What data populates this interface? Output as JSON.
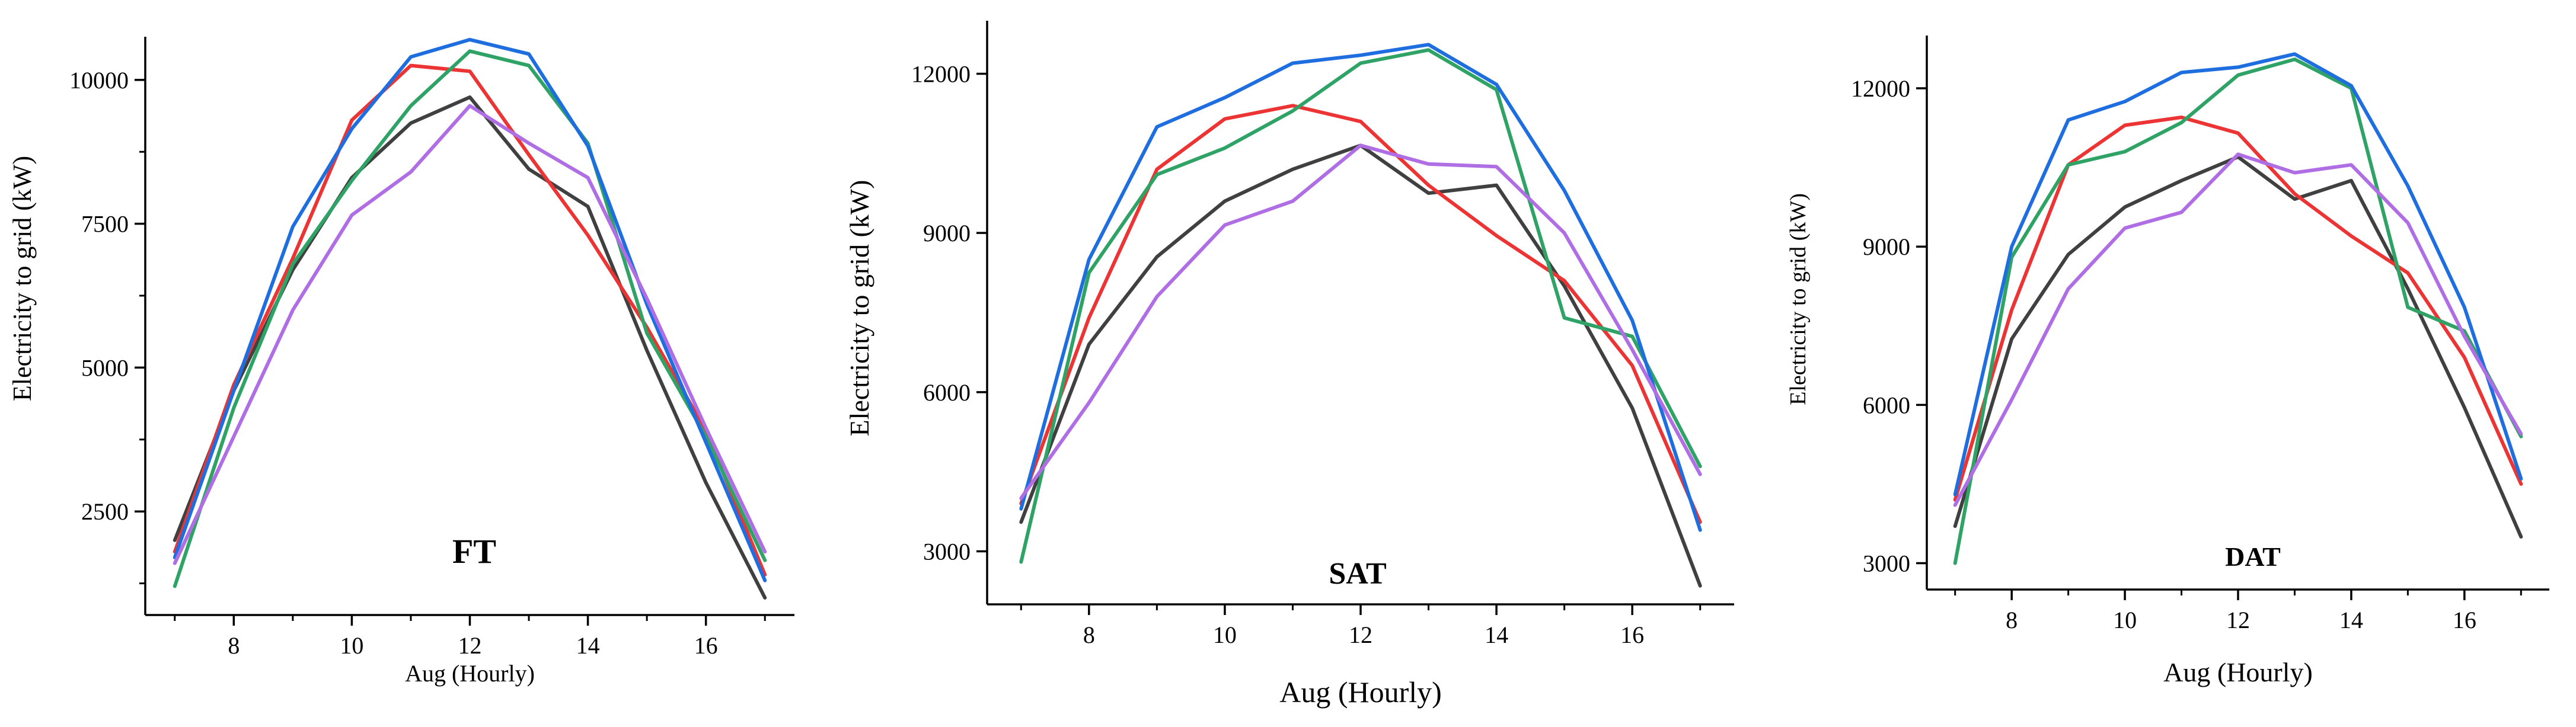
{
  "chart_data": [
    {
      "type": "line",
      "panel_label": "FT",
      "xlabel": "Aug (Hourly)",
      "ylabel": "Electricity to grid (kW)",
      "x": [
        7,
        8,
        9,
        10,
        11,
        12,
        13,
        14,
        15,
        16,
        17
      ],
      "xlim": [
        6.5,
        17.5
      ],
      "ylim": [
        700,
        10750
      ],
      "xticks": [
        8,
        10,
        12,
        14,
        16
      ],
      "yticks": [
        2500,
        5000,
        7500,
        10000
      ],
      "series": [
        {
          "name": "gray",
          "color": "#404040",
          "values": [
            2000,
            4600,
            6700,
            8300,
            9250,
            9700,
            8450,
            7800,
            5300,
            3000,
            1000
          ]
        },
        {
          "name": "red",
          "color": "#ec3434",
          "values": [
            1800,
            4700,
            6900,
            9300,
            10250,
            10150,
            8700,
            7300,
            5700,
            3900,
            1400
          ]
        },
        {
          "name": "green",
          "color": "#2ea365",
          "values": [
            1200,
            4300,
            6800,
            8250,
            9550,
            10500,
            10250,
            8900,
            5600,
            3800,
            1650
          ]
        },
        {
          "name": "blue",
          "color": "#1e6ee0",
          "values": [
            1700,
            4600,
            7450,
            9150,
            10400,
            10700,
            10450,
            8850,
            6100,
            3700,
            1300
          ]
        },
        {
          "name": "purple",
          "color": "#b06ee4",
          "values": [
            1600,
            3800,
            6000,
            7650,
            8400,
            9550,
            8900,
            8300,
            6200,
            3950,
            1800
          ]
        }
      ]
    },
    {
      "type": "line",
      "panel_label": "SAT",
      "xlabel": "Aug (Hourly)",
      "ylabel": "Electricity to grid (kW)",
      "x": [
        7,
        8,
        9,
        10,
        11,
        12,
        13,
        14,
        15,
        16,
        17
      ],
      "xlim": [
        6.5,
        17.5
      ],
      "ylim": [
        2000,
        13000
      ],
      "xticks": [
        8,
        10,
        12,
        14,
        16
      ],
      "yticks": [
        3000,
        6000,
        9000,
        12000
      ],
      "series": [
        {
          "name": "gray",
          "color": "#404040",
          "values": [
            3550,
            6900,
            8550,
            9600,
            10200,
            10650,
            9750,
            9900,
            8000,
            5700,
            2350
          ]
        },
        {
          "name": "red",
          "color": "#ec3434",
          "values": [
            3900,
            7400,
            10200,
            11150,
            11400,
            11100,
            9900,
            8950,
            8100,
            6500,
            3550
          ]
        },
        {
          "name": "green",
          "color": "#2ea365",
          "values": [
            2800,
            8250,
            10100,
            10600,
            11300,
            12200,
            12450,
            11700,
            7400,
            7050,
            4600
          ]
        },
        {
          "name": "blue",
          "color": "#1e6ee0",
          "values": [
            3800,
            8500,
            11000,
            11550,
            12200,
            12350,
            12550,
            11800,
            9800,
            7350,
            3400
          ]
        },
        {
          "name": "purple",
          "color": "#b06ee4",
          "values": [
            4000,
            5800,
            7800,
            9150,
            9600,
            10650,
            10300,
            10250,
            9000,
            6800,
            4450
          ]
        }
      ]
    },
    {
      "type": "line",
      "panel_label": "DAT",
      "xlabel": "Aug (Hourly)",
      "ylabel": "Electricity to grid (kW)",
      "x": [
        7,
        8,
        9,
        10,
        11,
        12,
        13,
        14,
        15,
        16,
        17
      ],
      "xlim": [
        6.5,
        17.5
      ],
      "ylim": [
        2500,
        13000
      ],
      "xticks": [
        8,
        10,
        12,
        14,
        16
      ],
      "yticks": [
        3000,
        6000,
        9000,
        12000
      ],
      "series": [
        {
          "name": "gray",
          "color": "#404040",
          "values": [
            3700,
            7250,
            8850,
            9750,
            10250,
            10700,
            9900,
            10250,
            8200,
            5950,
            3500
          ]
        },
        {
          "name": "red",
          "color": "#ec3434",
          "values": [
            4200,
            7800,
            10550,
            11300,
            11450,
            11150,
            10000,
            9200,
            8500,
            6900,
            4500
          ]
        },
        {
          "name": "green",
          "color": "#2ea365",
          "values": [
            3000,
            8800,
            10550,
            10800,
            11350,
            12250,
            12550,
            12000,
            7850,
            7400,
            5400
          ]
        },
        {
          "name": "blue",
          "color": "#1e6ee0",
          "values": [
            4300,
            9000,
            11400,
            11750,
            12300,
            12400,
            12650,
            12050,
            10150,
            7850,
            4600
          ]
        },
        {
          "name": "purple",
          "color": "#b06ee4",
          "values": [
            4100,
            6100,
            8200,
            9350,
            9650,
            10750,
            10400,
            10550,
            9450,
            7300,
            5450
          ]
        }
      ]
    }
  ]
}
